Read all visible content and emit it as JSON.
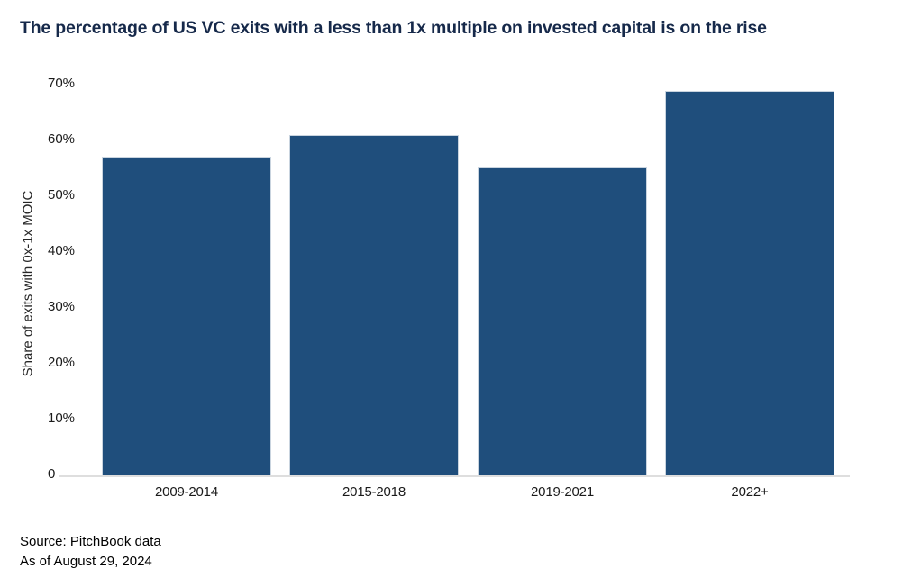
{
  "chart_data": {
    "type": "bar",
    "title": "The percentage of US VC exits with a less than 1x multiple on invested capital is on the rise",
    "categories": [
      "2009-2014",
      "2015-2018",
      "2019-2021",
      "2022+"
    ],
    "values": [
      56.9,
      60.8,
      55.0,
      68.7
    ],
    "xlabel": "",
    "ylabel": "Share of exits with 0x-1x MOIC",
    "ylim": [
      0,
      70
    ],
    "ytick_step": 10,
    "ytick_labels": [
      "0",
      "10%",
      "20%",
      "30%",
      "40%",
      "50%",
      "60%",
      "70%"
    ],
    "grid": false,
    "legend_position": "none",
    "bar_color": "#1f4e7c"
  },
  "colors": {
    "title": "#16294a",
    "bar": "#1f4e7c",
    "axis_line": "#dedede",
    "tick_text": "#1a1a1a"
  },
  "footer": {
    "source": "Source: PitchBook data",
    "as_of": "As of August 29, 2024"
  }
}
